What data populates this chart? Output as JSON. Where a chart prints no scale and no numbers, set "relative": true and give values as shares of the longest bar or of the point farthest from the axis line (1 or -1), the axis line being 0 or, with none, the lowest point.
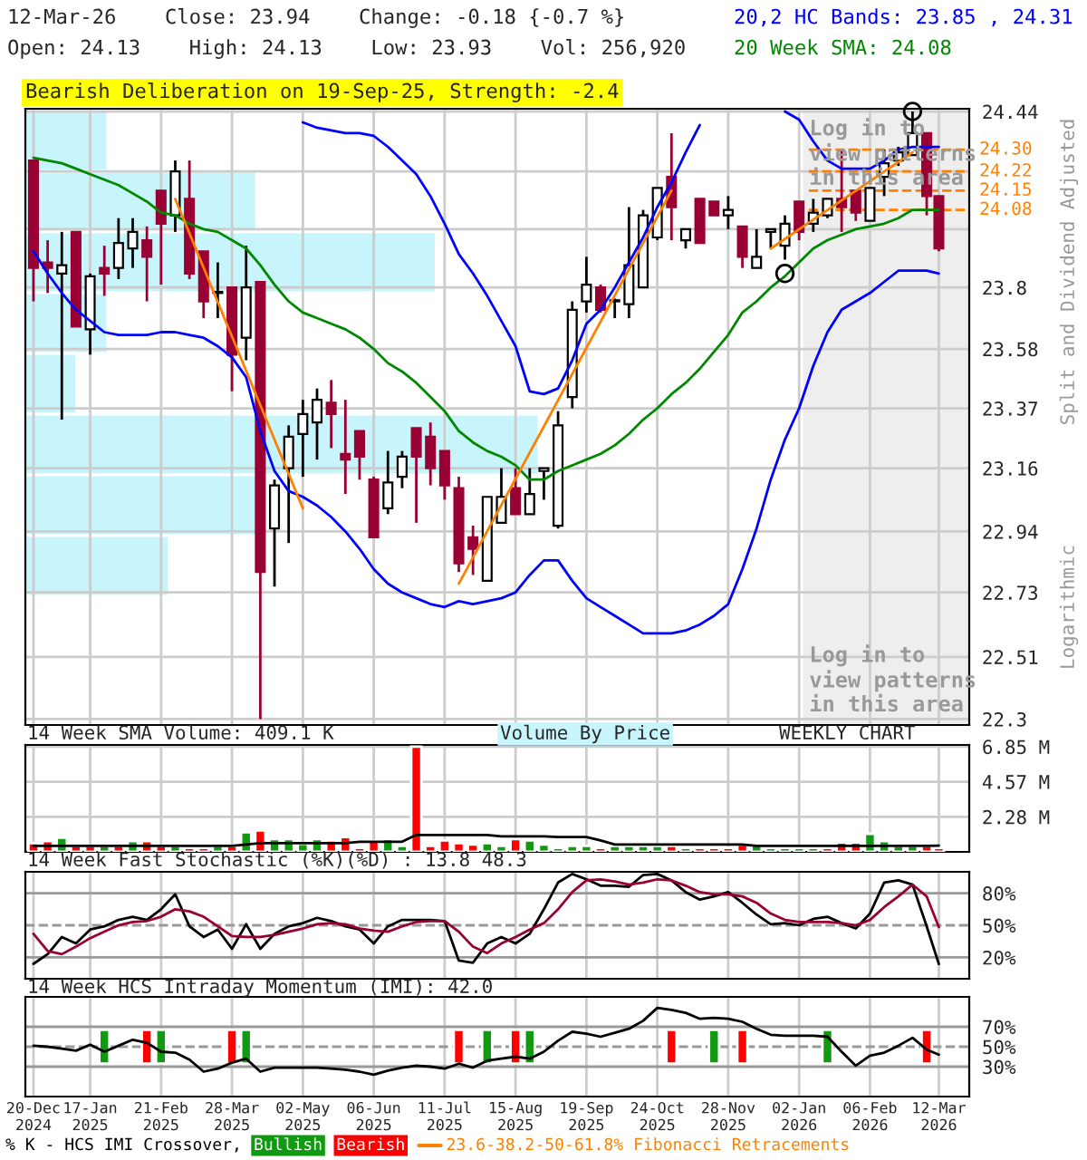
{
  "chart_data": [
    {
      "type": "candlestick",
      "title": "12-Mar-26    Close: 23.94    Change: -0.18 {-0.7 %}",
      "subtitle": "Open: 24.13    High: 24.13    Low: 23.93    Vol: 256,920",
      "x": [
        "2024-12-20",
        "2024-12-27",
        "2025-01-03",
        "2025-01-10",
        "2025-01-17",
        "2025-01-24",
        "2025-01-31",
        "2025-02-07",
        "2025-02-14",
        "2025-02-21",
        "2025-02-28",
        "2025-03-07",
        "2025-03-14",
        "2025-03-21",
        "2025-03-28",
        "2025-04-04",
        "2025-04-11",
        "2025-04-18",
        "2025-04-25",
        "2025-05-02",
        "2025-05-09",
        "2025-05-16",
        "2025-05-23",
        "2025-05-30",
        "2025-06-06",
        "2025-06-13",
        "2025-06-20",
        "2025-06-27",
        "2025-07-04",
        "2025-07-11",
        "2025-07-18",
        "2025-07-25",
        "2025-08-01",
        "2025-08-08",
        "2025-08-15",
        "2025-08-22",
        "2025-08-29",
        "2025-09-05",
        "2025-09-12",
        "2025-09-19",
        "2025-09-26",
        "2025-10-03",
        "2025-10-10",
        "2025-10-17",
        "2025-10-24",
        "2025-10-31",
        "2025-11-07",
        "2025-11-14",
        "2025-11-21",
        "2025-11-28",
        "2025-12-05",
        "2025-12-12",
        "2025-12-19",
        "2025-12-26",
        "2026-01-02",
        "2026-01-09",
        "2026-01-16",
        "2026-01-23",
        "2026-01-30",
        "2026-02-06",
        "2026-02-13",
        "2026-02-20",
        "2026-02-27",
        "2026-03-06",
        "2026-03-12"
      ],
      "ohlc": [
        [
          24.26,
          24.26,
          23.75,
          23.87
        ],
        [
          23.89,
          23.97,
          23.78,
          23.87
        ],
        [
          23.85,
          24.0,
          23.33,
          23.88
        ],
        [
          24.0,
          24.0,
          23.66,
          23.66
        ],
        [
          23.65,
          23.85,
          23.56,
          23.84
        ],
        [
          23.87,
          23.95,
          23.77,
          23.85
        ],
        [
          23.87,
          24.05,
          23.83,
          23.96
        ],
        [
          23.94,
          24.05,
          23.87,
          24.0
        ],
        [
          23.97,
          24.02,
          23.75,
          23.91
        ],
        [
          24.15,
          24.15,
          23.81,
          24.03
        ],
        [
          24.06,
          24.26,
          24.0,
          24.22
        ],
        [
          24.12,
          24.26,
          23.83,
          23.85
        ],
        [
          23.93,
          23.93,
          23.69,
          23.75
        ],
        [
          23.78,
          23.89,
          23.69,
          23.78
        ],
        [
          23.8,
          23.8,
          23.43,
          23.56
        ],
        [
          23.62,
          23.95,
          23.54,
          23.8
        ],
        [
          23.82,
          23.82,
          22.3,
          22.8
        ],
        [
          22.95,
          23.12,
          22.75,
          23.1
        ],
        [
          23.16,
          23.31,
          22.9,
          23.27
        ],
        [
          23.28,
          23.4,
          23.13,
          23.35
        ],
        [
          23.32,
          23.44,
          23.19,
          23.4
        ],
        [
          23.39,
          23.47,
          23.23,
          23.35
        ],
        [
          23.21,
          23.4,
          23.07,
          23.19
        ],
        [
          23.29,
          23.29,
          23.12,
          23.2
        ],
        [
          23.12,
          23.13,
          22.92,
          22.92
        ],
        [
          23.02,
          23.22,
          23.0,
          23.11
        ],
        [
          23.13,
          23.22,
          23.09,
          23.2
        ],
        [
          23.3,
          23.3,
          22.97,
          23.2
        ],
        [
          23.27,
          23.32,
          23.1,
          23.16
        ],
        [
          23.22,
          23.22,
          23.05,
          23.1
        ],
        [
          23.09,
          23.13,
          22.8,
          22.83
        ],
        [
          22.92,
          22.96,
          22.79,
          22.88
        ],
        [
          22.77,
          23.06,
          22.77,
          23.06
        ],
        [
          22.97,
          23.16,
          22.97,
          23.06
        ],
        [
          23.09,
          23.16,
          23.0,
          23.0
        ],
        [
          23.0,
          23.16,
          23.0,
          23.07
        ],
        [
          23.15,
          23.16,
          23.05,
          23.16
        ],
        [
          22.96,
          23.36,
          22.95,
          23.31
        ],
        [
          23.41,
          23.75,
          23.37,
          23.72
        ],
        [
          23.75,
          23.91,
          23.71,
          23.81
        ],
        [
          23.8,
          23.81,
          23.71,
          23.72
        ],
        [
          23.75,
          23.76,
          23.69,
          23.75
        ],
        [
          23.74,
          24.09,
          23.69,
          23.88
        ],
        [
          23.8,
          24.08,
          23.8,
          24.06
        ],
        [
          23.98,
          24.16,
          23.97,
          24.16
        ],
        [
          24.2,
          24.36,
          23.97,
          24.09
        ],
        [
          23.97,
          24.01,
          23.94,
          24.01
        ],
        [
          24.12,
          24.12,
          23.96,
          23.96
        ],
        [
          24.11,
          24.11,
          24.06,
          24.06
        ],
        [
          24.06,
          24.13,
          24.01,
          24.08
        ],
        [
          24.02,
          24.02,
          23.87,
          23.91
        ],
        [
          23.87,
          24.01,
          23.87,
          23.91
        ],
        [
          24.0,
          24.01,
          23.94,
          24.01
        ],
        [
          23.95,
          24.06,
          23.9,
          24.03
        ],
        [
          24.11,
          24.11,
          23.97,
          24.0
        ],
        [
          24.03,
          24.12,
          24.0,
          24.07
        ],
        [
          24.06,
          24.12,
          24.05,
          24.12
        ],
        [
          24.12,
          24.3,
          24.0,
          24.09
        ],
        [
          24.15,
          24.15,
          24.04,
          24.07
        ],
        [
          24.04,
          24.16,
          24.04,
          24.16
        ],
        [
          24.2,
          24.3,
          24.13,
          24.25
        ],
        [
          24.26,
          24.31,
          24.24,
          24.29
        ],
        [
          24.28,
          24.44,
          24.28,
          24.36
        ],
        [
          24.36,
          24.36,
          24.06,
          24.13
        ],
        [
          24.13,
          24.13,
          23.93,
          23.94
        ]
      ],
      "colors": [
        "#990033",
        "#990033",
        "#ffffff",
        "#990033",
        "#ffffff",
        "#990033",
        "#ffffff",
        "#ffffff",
        "#990033",
        "#990033",
        "#ffffff",
        "#990033",
        "#990033",
        "#ffffff",
        "#990033",
        "#ffffff",
        "#990033",
        "#ffffff",
        "#ffffff",
        "#ffffff",
        "#ffffff",
        "#990033",
        "#990033",
        "#990033",
        "#990033",
        "#ffffff",
        "#ffffff",
        "#990033",
        "#990033",
        "#990033",
        "#990033",
        "#990033",
        "#ffffff",
        "#ffffff",
        "#990033",
        "#ffffff",
        "#ffffff",
        "#ffffff",
        "#ffffff",
        "#ffffff",
        "#990033",
        "#ffffff",
        "#ffffff",
        "#ffffff",
        "#ffffff",
        "#990033",
        "#ffffff",
        "#990033",
        "#990033",
        "#ffffff",
        "#990033",
        "#ffffff",
        "#ffffff",
        "#ffffff",
        "#990033",
        "#ffffff",
        "#ffffff",
        "#990033",
        "#990033",
        "#ffffff",
        "#ffffff",
        "#ffffff",
        "#ffffff",
        "#990033",
        "#990033"
      ],
      "series": [
        {
          "type": "line",
          "name": "20,2 HC Bands: 23.85 , 24.31",
          "color": "#0000ff",
          "values": [
            null,
            null,
            null,
            null,
            null,
            null,
            null,
            null,
            null,
            null,
            null,
            null,
            null,
            null,
            null,
            null,
            null,
            null,
            null,
            24.4,
            24.38,
            24.37,
            24.36,
            24.36,
            24.35,
            24.31,
            24.26,
            24.21,
            24.13,
            24.03,
            23.92,
            23.85,
            23.77,
            23.68,
            23.59,
            23.43,
            23.42,
            23.44,
            23.54,
            23.67,
            23.72,
            23.8,
            23.89,
            23.98,
            24.09,
            24.18,
            24.29,
            24.39,
            null,
            null,
            null,
            null,
            null,
            24.44,
            24.41,
            24.33,
            24.26,
            24.23,
            24.23,
            24.23,
            24.26,
            24.3,
            24.31,
            24.31,
            24.31
          ]
        },
        {
          "type": "line",
          "color": "#0000ff",
          "values": [
            23.93,
            23.85,
            23.78,
            23.72,
            23.68,
            23.64,
            23.63,
            23.63,
            23.63,
            23.64,
            23.64,
            23.63,
            23.62,
            23.59,
            23.55,
            23.48,
            23.29,
            23.15,
            23.08,
            23.06,
            23.03,
            22.99,
            22.94,
            22.88,
            22.81,
            22.76,
            22.73,
            22.71,
            22.69,
            22.68,
            22.7,
            22.69,
            22.7,
            22.71,
            22.73,
            22.79,
            22.84,
            22.84,
            22.77,
            22.71,
            22.68,
            22.65,
            22.62,
            22.59,
            22.59,
            22.59,
            22.6,
            22.62,
            22.65,
            22.69,
            22.81,
            22.95,
            23.12,
            23.26,
            23.37,
            23.52,
            23.64,
            23.72,
            23.75,
            23.78,
            23.82,
            23.86,
            23.86,
            23.86,
            23.85
          ]
        },
        {
          "type": "line",
          "name": "20 Week SMA: 24.08",
          "color": "#008800",
          "values": [
            24.27,
            24.26,
            24.25,
            24.23,
            24.21,
            24.19,
            24.17,
            24.14,
            24.11,
            24.07,
            24.06,
            24.03,
            24.01,
            24.0,
            23.97,
            23.94,
            23.88,
            23.81,
            23.75,
            23.71,
            23.69,
            23.67,
            23.65,
            23.62,
            23.58,
            23.53,
            23.5,
            23.46,
            23.41,
            23.36,
            23.29,
            23.25,
            23.22,
            23.2,
            23.17,
            23.12,
            23.12,
            23.15,
            23.17,
            23.19,
            23.21,
            23.24,
            23.28,
            23.33,
            23.37,
            23.42,
            23.46,
            23.51,
            23.57,
            23.63,
            23.71,
            23.75,
            23.8,
            23.84,
            23.89,
            23.94,
            23.97,
            23.99,
            24.01,
            24.02,
            24.03,
            24.05,
            24.08,
            24.08,
            24.08
          ]
        },
        {
          "type": "line",
          "name": "23.6-38.2-50-61.8% Fibonacci Retracements",
          "color": "#ff8000",
          "x": [
            "2025-02-28",
            "2025-05-02"
          ],
          "values": [
            24.12,
            23.02
          ]
        },
        {
          "type": "line",
          "color": "#ff8000",
          "x": [
            "2025-07-18",
            "2025-10-31"
          ],
          "values": [
            22.76,
            24.15
          ]
        },
        {
          "type": "line",
          "color": "#ff8000",
          "x": [
            "2025-12-19",
            "2026-02-27"
          ],
          "values": [
            23.94,
            24.29
          ]
        },
        {
          "type": "scatter",
          "marker": "circle",
          "color": "#000000",
          "values": [
            null,
            null,
            null,
            null,
            null,
            null,
            null,
            null,
            null,
            null,
            null,
            null,
            null,
            null,
            null,
            null,
            null,
            null,
            null,
            null,
            null,
            null,
            null,
            null,
            null,
            null,
            null,
            null,
            null,
            null,
            null,
            null,
            null,
            null,
            null,
            null,
            null,
            null,
            null,
            null,
            null,
            null,
            null,
            null,
            null,
            null,
            null,
            null,
            null,
            null,
            null,
            null,
            null,
            23.85,
            null,
            null,
            null,
            null,
            null,
            null,
            null,
            null,
            24.44,
            null,
            null
          ]
        }
      ],
      "ref_lines": [
        {
          "axis": "y",
          "value": 24.3,
          "label": "24.30",
          "color": "#ff8000",
          "line_style": "dashed"
        },
        {
          "axis": "y",
          "value": 24.22,
          "label": "24.22",
          "color": "#ff8000",
          "line_style": "dashed"
        },
        {
          "axis": "y",
          "value": 24.15,
          "label": "24.15",
          "color": "#ff8000",
          "line_style": "dashed"
        },
        {
          "axis": "y",
          "value": 24.08,
          "label": "24.08",
          "color": "#ff8000",
          "line_style": "dashed"
        }
      ],
      "bands": [
        {
          "axis": "x",
          "from": "2026-01-04",
          "to": "2026-03-27",
          "label": "Log in to\nview patterns\nin this area",
          "color": "#eeeeee"
        }
      ],
      "annotations": [
        "Bearish Deliberation on 19-Sep-25, Strength: -2.4",
        "Split and Dividend Adjusted",
        "Logarithmic",
        "Log in to\nview patterns\nin this area"
      ],
      "log": true,
      "ylim": [
        22.28,
        24.45
      ],
      "yticks": [
        22.3,
        22.51,
        22.73,
        22.94,
        23.16,
        23.37,
        23.58,
        23.8,
        {
          "value": 24.01,
          "label": null
        },
        {
          "value": 24.22,
          "label": null
        },
        24.44
      ],
      "xlim": [
        "2024-12-16",
        "2026-03-27"
      ],
      "xticks": [
        {
          "value": "2024-12-20",
          "label": null
        },
        {
          "value": "2025-01-17",
          "label": null
        },
        {
          "value": "2025-02-21",
          "label": null
        },
        {
          "value": "2025-03-28",
          "label": null
        },
        {
          "value": "2025-05-02",
          "label": null
        },
        {
          "value": "2025-06-06",
          "label": null
        },
        {
          "value": "2025-07-11",
          "label": null
        },
        {
          "value": "2025-08-15",
          "label": null
        },
        {
          "value": "2025-09-19",
          "label": null
        },
        {
          "value": "2025-10-24",
          "label": null
        },
        {
          "value": "2025-11-28",
          "label": null
        },
        {
          "value": "2026-01-02",
          "label": null
        },
        {
          "value": "2026-02-06",
          "label": null
        },
        {
          "value": "2026-03-12",
          "label": null
        }
      ],
      "tick_labels": "y",
      "grid": true
    },
    {
      "type": "bar",
      "orientation": "horizontal",
      "relative": true,
      "categories": [
        null,
        null,
        null,
        null,
        null,
        null,
        null,
        null
      ],
      "tick_labels": false,
      "series": [
        {
          "name": "Volume By Price",
          "color": "#c8f4fc",
          "values": [
            0.16,
            0.45,
            0.8,
            0.16,
            0.1,
            1,
            0.45,
            0.28
          ]
        }
      ]
    },
    {
      "type": "bar",
      "title": "14 Week SMA Volume: 409.1 K",
      "x": [
        "2024-12-20",
        "2024-12-27",
        "2025-01-03",
        "2025-01-10",
        "2025-01-17",
        "2025-01-24",
        "2025-01-31",
        "2025-02-07",
        "2025-02-14",
        "2025-02-21",
        "2025-02-28",
        "2025-03-07",
        "2025-03-14",
        "2025-03-21",
        "2025-03-28",
        "2025-04-04",
        "2025-04-11",
        "2025-04-18",
        "2025-04-25",
        "2025-05-02",
        "2025-05-09",
        "2025-05-16",
        "2025-05-23",
        "2025-05-30",
        "2025-06-06",
        "2025-06-13",
        "2025-06-20",
        "2025-06-27",
        "2025-07-04",
        "2025-07-11",
        "2025-07-18",
        "2025-07-25",
        "2025-08-01",
        "2025-08-08",
        "2025-08-15",
        "2025-08-22",
        "2025-08-29",
        "2025-09-05",
        "2025-09-12",
        "2025-09-19",
        "2025-09-26",
        "2025-10-03",
        "2025-10-10",
        "2025-10-17",
        "2025-10-24",
        "2025-10-31",
        "2025-11-07",
        "2025-11-14",
        "2025-11-21",
        "2025-11-28",
        "2025-12-05",
        "2025-12-12",
        "2025-12-19",
        "2025-12-26",
        "2026-01-02",
        "2026-01-09",
        "2026-01-16",
        "2026-01-23",
        "2026-01-30",
        "2026-02-06",
        "2026-02-13",
        "2026-02-20",
        "2026-02-27",
        "2026-03-06",
        "2026-03-12"
      ],
      "values": [
        0.57,
        0.7,
        0.92,
        0.39,
        0.39,
        0.39,
        0.39,
        0.7,
        0.7,
        0.39,
        0.39,
        0.26,
        0.26,
        0.39,
        0.39,
        1.27,
        1.4,
        0.83,
        0.83,
        0.53,
        0.83,
        0.74,
        0.96,
        0.26,
        0.7,
        0.83,
        0.39,
        6.85,
        0.39,
        0.74,
        0.57,
        0.48,
        0.57,
        0.39,
        0.83,
        0.74,
        0.48,
        0.26,
        0.39,
        0.39,
        0.26,
        0.39,
        0.39,
        0.39,
        0.39,
        0.39,
        0.26,
        0.26,
        0.26,
        0.26,
        0.48,
        0.48,
        0.26,
        0.26,
        0.26,
        0.26,
        0.26,
        0.61,
        0.61,
        1.18,
        0.7,
        0.39,
        0.39,
        0.39,
        0.26
      ],
      "colors": [
        "#ff0000",
        "#ff0000",
        "#119911",
        "#ff0000",
        "#ff0000",
        "#119911",
        "#ff0000",
        "#119911",
        "#ff0000",
        "#ff0000",
        "#119911",
        "#ff0000",
        "#ff0000",
        "#119911",
        "#ff0000",
        "#119911",
        "#ff0000",
        "#119911",
        "#119911",
        "#119911",
        "#119911",
        "#ff0000",
        "#ff0000",
        "#ff0000",
        "#ff0000",
        "#119911",
        "#119911",
        "#ff0000",
        "#ff0000",
        "#ff0000",
        "#ff0000",
        "#ff0000",
        "#119911",
        "#119911",
        "#ff0000",
        "#119911",
        "#119911",
        "#119911",
        "#119911",
        "#119911",
        "#ff0000",
        "#119911",
        "#119911",
        "#119911",
        "#119911",
        "#ff0000",
        "#119911",
        "#ff0000",
        "#ff0000",
        "#ff0000",
        "#ff0000",
        "#119911",
        "#119911",
        "#119911",
        "#119911",
        "#119911",
        "#ff0000",
        "#ff0000",
        "#ff0000",
        "#119911",
        "#119911",
        "#119911",
        "#119911",
        "#ff0000",
        "#ff0000"
      ],
      "series": [
        {
          "type": "line",
          "color": "#000000",
          "values": [
            0.39,
            0.39,
            0.39,
            0.39,
            0.39,
            0.39,
            0.39,
            0.39,
            0.39,
            0.39,
            0.39,
            0.39,
            0.39,
            0.39,
            0.39,
            0.48,
            0.57,
            0.57,
            0.57,
            0.57,
            0.57,
            0.57,
            0.57,
            0.66,
            0.66,
            0.66,
            0.66,
            1.1,
            1.1,
            1.1,
            1.1,
            1.1,
            1.1,
            1.01,
            1.01,
            1.01,
            1.01,
            0.96,
            0.96,
            0.96,
            0.74,
            0.48,
            0.48,
            0.48,
            0.48,
            0.48,
            0.48,
            0.48,
            0.48,
            0.48,
            0.48,
            0.39,
            0.39,
            0.39,
            0.39,
            0.39,
            0.39,
            0.39,
            0.39,
            0.39,
            0.39,
            0.39,
            0.39,
            0.39,
            0.41
          ]
        }
      ],
      "annotations": [
        "WEEKLY CHART"
      ],
      "ylim": [
        0,
        6.96
      ],
      "yticks": [
        {
          "value": 2.28,
          "label": "2.28 M"
        },
        {
          "value": 4.57,
          "label": "4.57 M"
        },
        {
          "value": 6.85,
          "label": "6.85 M"
        }
      ],
      "xlim": [
        "2024-12-16",
        "2026-03-27"
      ],
      "xticks": [
        {
          "value": "2024-12-20",
          "label": null
        },
        {
          "value": "2025-01-17",
          "label": null
        },
        {
          "value": "2025-02-21",
          "label": null
        },
        {
          "value": "2025-03-28",
          "label": null
        },
        {
          "value": "2025-05-02",
          "label": null
        },
        {
          "value": "2025-06-06",
          "label": null
        },
        {
          "value": "2025-07-11",
          "label": null
        },
        {
          "value": "2025-08-15",
          "label": null
        },
        {
          "value": "2025-09-19",
          "label": null
        },
        {
          "value": "2025-10-24",
          "label": null
        },
        {
          "value": "2025-11-28",
          "label": null
        },
        {
          "value": "2026-01-02",
          "label": null
        },
        {
          "value": "2026-02-06",
          "label": null
        },
        {
          "value": "2026-03-12",
          "label": null
        }
      ],
      "tick_labels": "y",
      "grid": true
    },
    {
      "type": "line",
      "title": "14 Week Fast Stochastic (%K)(%D) : 13.8 48.3",
      "x": [
        "2024-12-20",
        "2024-12-27",
        "2025-01-03",
        "2025-01-10",
        "2025-01-17",
        "2025-01-24",
        "2025-01-31",
        "2025-02-07",
        "2025-02-14",
        "2025-02-21",
        "2025-02-28",
        "2025-03-07",
        "2025-03-14",
        "2025-03-21",
        "2025-03-28",
        "2025-04-04",
        "2025-04-11",
        "2025-04-18",
        "2025-04-25",
        "2025-05-02",
        "2025-05-09",
        "2025-05-16",
        "2025-05-23",
        "2025-05-30",
        "2025-06-06",
        "2025-06-13",
        "2025-06-20",
        "2025-06-27",
        "2025-07-04",
        "2025-07-11",
        "2025-07-18",
        "2025-07-25",
        "2025-08-01",
        "2025-08-08",
        "2025-08-15",
        "2025-08-22",
        "2025-08-29",
        "2025-09-05",
        "2025-09-12",
        "2025-09-19",
        "2025-09-26",
        "2025-10-03",
        "2025-10-10",
        "2025-10-17",
        "2025-10-24",
        "2025-10-31",
        "2025-11-07",
        "2025-11-14",
        "2025-11-21",
        "2025-11-28",
        "2025-12-05",
        "2025-12-12",
        "2025-12-19",
        "2025-12-26",
        "2026-01-02",
        "2026-01-09",
        "2026-01-16",
        "2026-01-23",
        "2026-01-30",
        "2026-02-06",
        "2026-02-13",
        "2026-02-20",
        "2026-02-27",
        "2026-03-06",
        "2026-03-12"
      ],
      "series": [
        {
          "color": "#000000",
          "values": [
            14,
            23,
            39,
            33,
            46,
            49,
            55,
            58,
            55,
            65,
            79,
            49,
            39,
            46,
            28,
            51,
            28,
            42,
            49,
            52,
            57,
            54,
            49,
            46,
            33,
            49,
            55,
            55,
            55,
            54,
            17,
            15,
            33,
            39,
            33,
            42,
            65,
            90,
            98,
            93,
            87,
            87,
            86,
            97,
            98,
            92,
            81,
            74,
            77,
            81,
            71,
            60,
            51,
            52,
            50,
            56,
            58,
            52,
            47,
            61,
            90,
            92,
            88,
            49,
            13.8
          ]
        },
        {
          "color": "#990033",
          "values": [
            42,
            26,
            23,
            30,
            38,
            44,
            50,
            53,
            54,
            58,
            65,
            63,
            58,
            49,
            40,
            39,
            39,
            41,
            44,
            47,
            51,
            52,
            51,
            47,
            45,
            44,
            49,
            53,
            54,
            54,
            44,
            30,
            24,
            33,
            39,
            46,
            52,
            65,
            81,
            92,
            93,
            91,
            88,
            90,
            93,
            92,
            87,
            81,
            79,
            79,
            77,
            71,
            61,
            55,
            53,
            53,
            53,
            52,
            50,
            55,
            67,
            77,
            88,
            77,
            48.3
          ]
        }
      ],
      "ref_lines": [
        {
          "axis": "y",
          "value": 20,
          "color": "#999999",
          "line_style": "solid"
        },
        {
          "axis": "y",
          "value": 50,
          "color": "#999999",
          "line_style": "dashed"
        },
        {
          "axis": "y",
          "value": 80,
          "color": "#999999",
          "line_style": "solid"
        }
      ],
      "ylim": [
        0,
        100
      ],
      "yticks": [
        {
          "value": 20,
          "label": "20%"
        },
        {
          "value": 50,
          "label": "50%"
        },
        {
          "value": 80,
          "label": "80%"
        }
      ],
      "xlim": [
        "2024-12-16",
        "2026-03-27"
      ],
      "xticks": [
        {
          "value": "2024-12-20",
          "label": null
        },
        {
          "value": "2025-01-17",
          "label": null
        },
        {
          "value": "2025-02-21",
          "label": null
        },
        {
          "value": "2025-03-28",
          "label": null
        },
        {
          "value": "2025-05-02",
          "label": null
        },
        {
          "value": "2025-06-06",
          "label": null
        },
        {
          "value": "2025-07-11",
          "label": null
        },
        {
          "value": "2025-08-15",
          "label": null
        },
        {
          "value": "2025-09-19",
          "label": null
        },
        {
          "value": "2025-10-24",
          "label": null
        },
        {
          "value": "2025-11-28",
          "label": null
        },
        {
          "value": "2026-01-02",
          "label": null
        },
        {
          "value": "2026-02-06",
          "label": null
        },
        {
          "value": "2026-03-12",
          "label": null
        }
      ],
      "tick_labels": "y",
      "grid": "x"
    },
    {
      "type": "line",
      "title": "14 Week HCS Intraday Momentum (IMI): 42.0",
      "x": [
        "2024-12-20",
        "2024-12-27",
        "2025-01-03",
        "2025-01-10",
        "2025-01-17",
        "2025-01-24",
        "2025-01-31",
        "2025-02-07",
        "2025-02-14",
        "2025-02-21",
        "2025-02-28",
        "2025-03-07",
        "2025-03-14",
        "2025-03-21",
        "2025-03-28",
        "2025-04-04",
        "2025-04-11",
        "2025-04-18",
        "2025-04-25",
        "2025-05-02",
        "2025-05-09",
        "2025-05-16",
        "2025-05-23",
        "2025-05-30",
        "2025-06-06",
        "2025-06-13",
        "2025-06-20",
        "2025-06-27",
        "2025-07-04",
        "2025-07-11",
        "2025-07-18",
        "2025-07-25",
        "2025-08-01",
        "2025-08-08",
        "2025-08-15",
        "2025-08-22",
        "2025-08-29",
        "2025-09-05",
        "2025-09-12",
        "2025-09-19",
        "2025-09-26",
        "2025-10-03",
        "2025-10-10",
        "2025-10-17",
        "2025-10-24",
        "2025-10-31",
        "2025-11-07",
        "2025-11-14",
        "2025-11-21",
        "2025-11-28",
        "2025-12-05",
        "2025-12-12",
        "2025-12-19",
        "2025-12-26",
        "2026-01-02",
        "2026-01-09",
        "2026-01-16",
        "2026-01-23",
        "2026-01-30",
        "2026-02-06",
        "2026-02-13",
        "2026-02-20",
        "2026-02-27",
        "2026-03-06",
        "2026-03-12"
      ],
      "series": [
        {
          "color": "#000000",
          "values": [
            51,
            50,
            48,
            46,
            52,
            45,
            51,
            57,
            54,
            45,
            44,
            37,
            25,
            28,
            34,
            38,
            25,
            29,
            29,
            29,
            29,
            28,
            27,
            25,
            22,
            26,
            29,
            31,
            30,
            28,
            33,
            29,
            36,
            38,
            40,
            38,
            45,
            56,
            65,
            63,
            60,
            64,
            68,
            76,
            89,
            87,
            84,
            78,
            79,
            78,
            75,
            68,
            62,
            61,
            61,
            61,
            60,
            45,
            31,
            41,
            44,
            51,
            59,
            47,
            42.0
          ]
        },
        {
          "type": "bar",
          "name": "Bullish",
          "color": "#119911",
          "x": [
            "2025-01-24",
            "2025-02-21",
            "2025-04-04",
            "2025-08-01",
            "2025-08-22",
            "2025-11-21",
            "2026-01-16"
          ],
          "base": [
            33,
            33,
            33,
            33,
            33,
            33,
            33
          ],
          "values": [
            34,
            34,
            34,
            34,
            34,
            34,
            34
          ]
        },
        {
          "type": "bar",
          "name": "Bearish",
          "color": "#ff0000",
          "x": [
            "2025-02-14",
            "2025-03-28",
            "2025-07-18",
            "2025-08-15",
            "2025-10-31",
            "2025-12-05",
            "2026-03-06"
          ],
          "base": [
            33,
            33,
            33,
            33,
            33,
            33,
            33
          ],
          "values": [
            34,
            34,
            34,
            34,
            34,
            34,
            34
          ]
        }
      ],
      "ref_lines": [
        {
          "axis": "y",
          "value": 30,
          "color": "#999999",
          "line_style": "solid"
        },
        {
          "axis": "y",
          "value": 50,
          "color": "#999999",
          "line_style": "dashed"
        },
        {
          "axis": "y",
          "value": 70,
          "color": "#999999",
          "line_style": "solid"
        }
      ],
      "ylim": [
        0,
        100
      ],
      "yticks": [
        {
          "value": 30,
          "label": "30%"
        },
        {
          "value": 50,
          "label": "50%"
        },
        {
          "value": 70,
          "label": "70%"
        }
      ],
      "xlim": [
        "2024-12-16",
        "2026-03-27"
      ],
      "xticks": [
        {
          "value": "2024-12-20",
          "label": "20-Dec\n2024"
        },
        {
          "value": "2025-01-17",
          "label": "17-Jan\n2025"
        },
        {
          "value": "2025-02-21",
          "label": "21-Feb\n2025"
        },
        {
          "value": "2025-03-28",
          "label": "28-Mar\n2025"
        },
        {
          "value": "2025-05-02",
          "label": "02-May\n2025"
        },
        {
          "value": "2025-06-06",
          "label": "06-Jun\n2025"
        },
        {
          "value": "2025-07-11",
          "label": "11-Jul\n2025"
        },
        {
          "value": "2025-08-15",
          "label": "15-Aug\n2025"
        },
        {
          "value": "2025-09-19",
          "label": "19-Sep\n2025"
        },
        {
          "value": "2025-10-24",
          "label": "24-Oct\n2025"
        },
        {
          "value": "2025-11-28",
          "label": "28-Nov\n2025"
        },
        {
          "value": "2026-01-02",
          "label": "02-Jan\n2026"
        },
        {
          "value": "2026-02-06",
          "label": "06-Feb\n2026"
        },
        {
          "value": "2026-03-12",
          "label": "12-Mar\n2026"
        }
      ],
      "grid": "x",
      "legend": "bottom",
      "legend_title": "% K - HCS IMI Crossover,"
    }
  ]
}
